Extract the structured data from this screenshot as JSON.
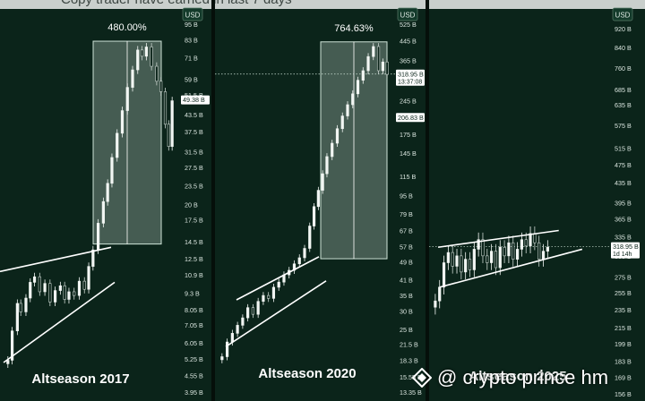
{
  "page": {
    "top_caption": "Copy trader have earned in last 7 days",
    "watermark": "@ crypto prince hm"
  },
  "colors": {
    "background": "#0b241a",
    "candle_up": "#f2f6f3",
    "candle_down": "#c9d3ce",
    "trendline": "#ffffff",
    "highlight_box": "#dfeee6",
    "price_tag_bg": "#ffffff",
    "price_tag_text": "#0b241a",
    "axis_text": "#dbe6e0"
  },
  "icons": {
    "watermark_logo": "diamond-logo-icon"
  },
  "chart_data": [
    {
      "type": "candlestick",
      "title": "Altseason 2017",
      "currency": "USD",
      "y_scale": "log",
      "ylim": [
        3.95,
        95
      ],
      "y_ticks": [
        {
          "label": "95 B",
          "value": 95
        },
        {
          "label": "83 B",
          "value": 83
        },
        {
          "label": "71 B",
          "value": 71
        },
        {
          "label": "59 B",
          "value": 59
        },
        {
          "label": "51.5 B",
          "value": 51.5
        },
        {
          "label": "43.5 B",
          "value": 43.5
        },
        {
          "label": "37.5 B",
          "value": 37.5
        },
        {
          "label": "31.5 B",
          "value": 31.5
        },
        {
          "label": "27.5 B",
          "value": 27.5
        },
        {
          "label": "23.5 B",
          "value": 23.5
        },
        {
          "label": "20 B",
          "value": 20
        },
        {
          "label": "17.5 B",
          "value": 17.5
        },
        {
          "label": "14.5 B",
          "value": 14.5
        },
        {
          "label": "12.5 B",
          "value": 12.5
        },
        {
          "label": "10.9 B",
          "value": 10.9
        },
        {
          "label": "9.3 B",
          "value": 9.3
        },
        {
          "label": "8.05 B",
          "value": 8.05
        },
        {
          "label": "7.05 B",
          "value": 7.05
        },
        {
          "label": "6.05 B",
          "value": 6.05
        },
        {
          "label": "5.25 B",
          "value": 5.25
        },
        {
          "label": "4.55 B",
          "value": 4.55
        },
        {
          "label": "3.95 B",
          "value": 3.95
        }
      ],
      "price_tags": [
        {
          "label": "49.38 B",
          "value": 49.38
        }
      ],
      "range_box": {
        "label": "480.00%",
        "start": 0.52,
        "end": 0.9,
        "from": 14.2,
        "to": 82
      },
      "trendlines": [
        {
          "t1": 0.0,
          "v1": 11.2,
          "t2": 0.62,
          "v2": 13.8
        },
        {
          "t1": 0.02,
          "v1": 5.1,
          "t2": 0.64,
          "v2": 10.2
        }
      ],
      "series": [
        {
          "t": 0.25,
          "v": 5.2
        },
        {
          "t": 0.5,
          "v": 6.7
        },
        {
          "t": 0.8,
          "v": 8.5
        },
        {
          "t": 1.0,
          "v": 7.9
        },
        {
          "t": 1.3,
          "v": 8.9
        },
        {
          "t": 1.55,
          "v": 10.2
        },
        {
          "t": 1.8,
          "v": 10.7
        },
        {
          "t": 2.1,
          "v": 9.4
        },
        {
          "t": 2.4,
          "v": 10.1
        },
        {
          "t": 2.7,
          "v": 8.6
        },
        {
          "t": 3.0,
          "v": 9.5
        },
        {
          "t": 3.3,
          "v": 9.9
        },
        {
          "t": 3.55,
          "v": 8.8
        },
        {
          "t": 3.8,
          "v": 9.4
        },
        {
          "t": 4.1,
          "v": 9.1
        },
        {
          "t": 4.4,
          "v": 10.3
        },
        {
          "t": 4.7,
          "v": 9.6
        },
        {
          "t": 4.95,
          "v": 11.7
        },
        {
          "t": 5.2,
          "v": 13.5
        },
        {
          "t": 5.5,
          "v": 17
        },
        {
          "t": 5.8,
          "v": 20.5
        },
        {
          "t": 6.05,
          "v": 24
        },
        {
          "t": 6.3,
          "v": 30
        },
        {
          "t": 6.6,
          "v": 37
        },
        {
          "t": 6.9,
          "v": 45
        },
        {
          "t": 7.2,
          "v": 55
        },
        {
          "t": 7.5,
          "v": 64
        },
        {
          "t": 7.8,
          "v": 76
        },
        {
          "t": 8.05,
          "v": 72
        },
        {
          "t": 8.3,
          "v": 78
        },
        {
          "t": 8.6,
          "v": 66
        },
        {
          "t": 8.9,
          "v": 58
        },
        {
          "t": 9.15,
          "v": 53
        },
        {
          "t": 9.4,
          "v": 40
        },
        {
          "t": 9.6,
          "v": 33
        },
        {
          "t": 9.8,
          "v": 49
        }
      ]
    },
    {
      "type": "candlestick",
      "title": "Altseason 2020",
      "currency": "USD",
      "y_scale": "log",
      "ylim": [
        13.35,
        525
      ],
      "y_ticks": [
        {
          "label": "525 B",
          "value": 525
        },
        {
          "label": "445 B",
          "value": 445
        },
        {
          "label": "365 B",
          "value": 365
        },
        {
          "label": "245 B",
          "value": 245
        },
        {
          "label": "175 B",
          "value": 175
        },
        {
          "label": "145 B",
          "value": 145
        },
        {
          "label": "115 B",
          "value": 115
        },
        {
          "label": "95 B",
          "value": 95
        },
        {
          "label": "79 B",
          "value": 79
        },
        {
          "label": "67 B",
          "value": 67
        },
        {
          "label": "57 B",
          "value": 57
        },
        {
          "label": "49 B",
          "value": 49
        },
        {
          "label": "41 B",
          "value": 41
        },
        {
          "label": "35 B",
          "value": 35
        },
        {
          "label": "30 B",
          "value": 30
        },
        {
          "label": "25 B",
          "value": 25
        },
        {
          "label": "21.5 B",
          "value": 21.5
        },
        {
          "label": "18.3 B",
          "value": 18.3
        },
        {
          "label": "15.55 B",
          "value": 15.55
        },
        {
          "label": "13.35 B",
          "value": 13.35
        }
      ],
      "price_tags": [
        {
          "label": "318.95 B",
          "sub": "13:37:08",
          "value": 318.95
        },
        {
          "label": "206.83 B",
          "value": 206.83
        }
      ],
      "range_box": {
        "label": "764.63%",
        "start": 0.59,
        "end": 0.96,
        "from": 50.5,
        "to": 440
      },
      "trendlines": [
        {
          "t1": 0.12,
          "v1": 33.5,
          "t2": 0.58,
          "v2": 51.5
        },
        {
          "t1": 0.06,
          "v1": 21,
          "t2": 0.62,
          "v2": 40.5
        }
      ],
      "series": [
        {
          "t": 0.2,
          "v": 19
        },
        {
          "t": 0.5,
          "v": 22
        },
        {
          "t": 0.8,
          "v": 24
        },
        {
          "t": 1.1,
          "v": 26
        },
        {
          "t": 1.4,
          "v": 28
        },
        {
          "t": 1.7,
          "v": 31
        },
        {
          "t": 2.0,
          "v": 29
        },
        {
          "t": 2.3,
          "v": 33
        },
        {
          "t": 2.6,
          "v": 35
        },
        {
          "t": 2.9,
          "v": 34
        },
        {
          "t": 3.2,
          "v": 38
        },
        {
          "t": 3.5,
          "v": 40
        },
        {
          "t": 3.8,
          "v": 43
        },
        {
          "t": 4.1,
          "v": 45
        },
        {
          "t": 4.4,
          "v": 48
        },
        {
          "t": 4.7,
          "v": 51
        },
        {
          "t": 5.0,
          "v": 56
        },
        {
          "t": 5.3,
          "v": 70
        },
        {
          "t": 5.55,
          "v": 85
        },
        {
          "t": 5.8,
          "v": 100
        },
        {
          "t": 6.05,
          "v": 118
        },
        {
          "t": 6.3,
          "v": 140
        },
        {
          "t": 6.6,
          "v": 160
        },
        {
          "t": 6.9,
          "v": 185
        },
        {
          "t": 7.2,
          "v": 210
        },
        {
          "t": 7.5,
          "v": 235
        },
        {
          "t": 7.8,
          "v": 262
        },
        {
          "t": 8.1,
          "v": 300
        },
        {
          "t": 8.4,
          "v": 330
        },
        {
          "t": 8.7,
          "v": 380
        },
        {
          "t": 9.0,
          "v": 420
        },
        {
          "t": 9.3,
          "v": 330
        },
        {
          "t": 9.55,
          "v": 360
        },
        {
          "t": 9.8,
          "v": 318
        }
      ]
    },
    {
      "type": "candlestick",
      "title": "Altseason 2025",
      "currency": "USD",
      "y_scale": "log",
      "ylim": [
        156,
        920
      ],
      "y_ticks": [
        {
          "label": "920 B",
          "value": 920
        },
        {
          "label": "840 B",
          "value": 840
        },
        {
          "label": "760 B",
          "value": 760
        },
        {
          "label": "685 B",
          "value": 685
        },
        {
          "label": "635 B",
          "value": 635
        },
        {
          "label": "575 B",
          "value": 575
        },
        {
          "label": "515 B",
          "value": 515
        },
        {
          "label": "475 B",
          "value": 475
        },
        {
          "label": "435 B",
          "value": 435
        },
        {
          "label": "395 B",
          "value": 395
        },
        {
          "label": "365 B",
          "value": 365
        },
        {
          "label": "335 B",
          "value": 335
        },
        {
          "label": "305 B",
          "value": 305
        },
        {
          "label": "275 B",
          "value": 275
        },
        {
          "label": "255 B",
          "value": 255
        },
        {
          "label": "235 B",
          "value": 235
        },
        {
          "label": "215 B",
          "value": 215
        },
        {
          "label": "199 B",
          "value": 199
        },
        {
          "label": "183 B",
          "value": 183
        },
        {
          "label": "169 B",
          "value": 169
        },
        {
          "label": "156 B",
          "value": 156
        }
      ],
      "price_tags": [
        {
          "label": "318.95 B",
          "sub": "1d 14h",
          "value": 318.95
        }
      ],
      "range_box": null,
      "trendlines": [
        {
          "t1": 0.05,
          "v1": 318,
          "t2": 0.72,
          "v2": 345
        },
        {
          "t1": 0.06,
          "v1": 262,
          "t2": 0.85,
          "v2": 315
        }
      ],
      "series": [
        {
          "t": 0.15,
          "v": 245
        },
        {
          "t": 0.4,
          "v": 262
        },
        {
          "t": 0.65,
          "v": 295
        },
        {
          "t": 0.9,
          "v": 310
        },
        {
          "t": 1.15,
          "v": 290
        },
        {
          "t": 1.4,
          "v": 305
        },
        {
          "t": 1.65,
          "v": 282
        },
        {
          "t": 1.9,
          "v": 300
        },
        {
          "t": 2.15,
          "v": 285
        },
        {
          "t": 2.4,
          "v": 315
        },
        {
          "t": 2.65,
          "v": 330
        },
        {
          "t": 2.9,
          "v": 305
        },
        {
          "t": 3.15,
          "v": 295
        },
        {
          "t": 3.4,
          "v": 312
        },
        {
          "t": 3.65,
          "v": 288
        },
        {
          "t": 3.9,
          "v": 318
        },
        {
          "t": 4.15,
          "v": 305
        },
        {
          "t": 4.4,
          "v": 325
        },
        {
          "t": 4.65,
          "v": 300
        },
        {
          "t": 4.9,
          "v": 315
        },
        {
          "t": 5.15,
          "v": 330
        },
        {
          "t": 5.4,
          "v": 320
        },
        {
          "t": 5.65,
          "v": 340
        },
        {
          "t": 5.9,
          "v": 325
        },
        {
          "t": 6.15,
          "v": 300
        },
        {
          "t": 6.4,
          "v": 312
        },
        {
          "t": 6.65,
          "v": 318
        }
      ]
    }
  ]
}
